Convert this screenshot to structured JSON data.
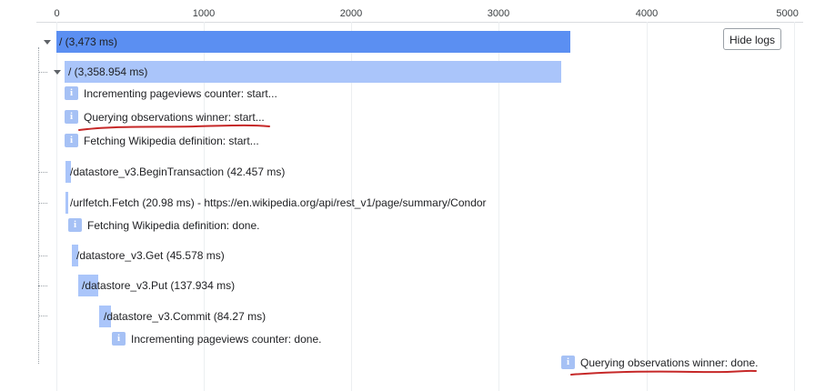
{
  "axis": {
    "ticks": [
      "0",
      "1000",
      "2000",
      "3000",
      "4000",
      "5000"
    ]
  },
  "toolbar": {
    "hide_logs_label": "Hide logs"
  },
  "spans": [
    {
      "id": "root",
      "label": "/ (3,473 ms)",
      "start_ms": 0,
      "duration_ms": 3473,
      "depth": 0,
      "expandable": true,
      "expanded": true
    },
    {
      "id": "request",
      "label": "/ (3,358.954 ms)",
      "start_ms": 57,
      "duration_ms": 3358.954,
      "depth": 1,
      "expandable": true,
      "expanded": true
    },
    {
      "id": "begin-tx",
      "label": "/datastore_v3.BeginTransaction (42.457 ms)",
      "start_ms": 70,
      "duration_ms": 42.457,
      "depth": 2
    },
    {
      "id": "urlfetch",
      "label": "/urlfetch.Fetch (20.98 ms) - https://en.wikipedia.org/api/rest_v1/page/summary/Condor",
      "start_ms": 68,
      "duration_ms": 20.98,
      "depth": 2
    },
    {
      "id": "get",
      "label": "/datastore_v3.Get (45.578 ms)",
      "start_ms": 108,
      "duration_ms": 45.578,
      "depth": 2
    },
    {
      "id": "put",
      "label": "/datastore_v3.Put (137.934 ms)",
      "start_ms": 156,
      "duration_ms": 137.934,
      "depth": 2
    },
    {
      "id": "commit",
      "label": "/datastore_v3.Commit (84.27 ms)",
      "start_ms": 298,
      "duration_ms": 84.27,
      "depth": 2
    }
  ],
  "logs": [
    {
      "id": "log-1",
      "icon": "i",
      "text": "Incrementing pageviews counter: start..."
    },
    {
      "id": "log-2",
      "icon": "i",
      "text": "Querying observations winner: start...",
      "highlighted": true
    },
    {
      "id": "log-3",
      "icon": "i",
      "text": "Fetching Wikipedia definition: start..."
    },
    {
      "id": "log-4",
      "icon": "i",
      "text": "Fetching Wikipedia definition: done."
    },
    {
      "id": "log-5",
      "icon": "i",
      "text": "Incrementing pageviews counter: done."
    },
    {
      "id": "log-6",
      "icon": "i",
      "text": "Querying observations winner: done.",
      "highlighted": true
    }
  ],
  "colors": {
    "root_bar": "#5b8ff2",
    "child_bar": "#aac5fa",
    "log_icon": "#a6c1f5",
    "annotation_underline": "#c62828"
  }
}
